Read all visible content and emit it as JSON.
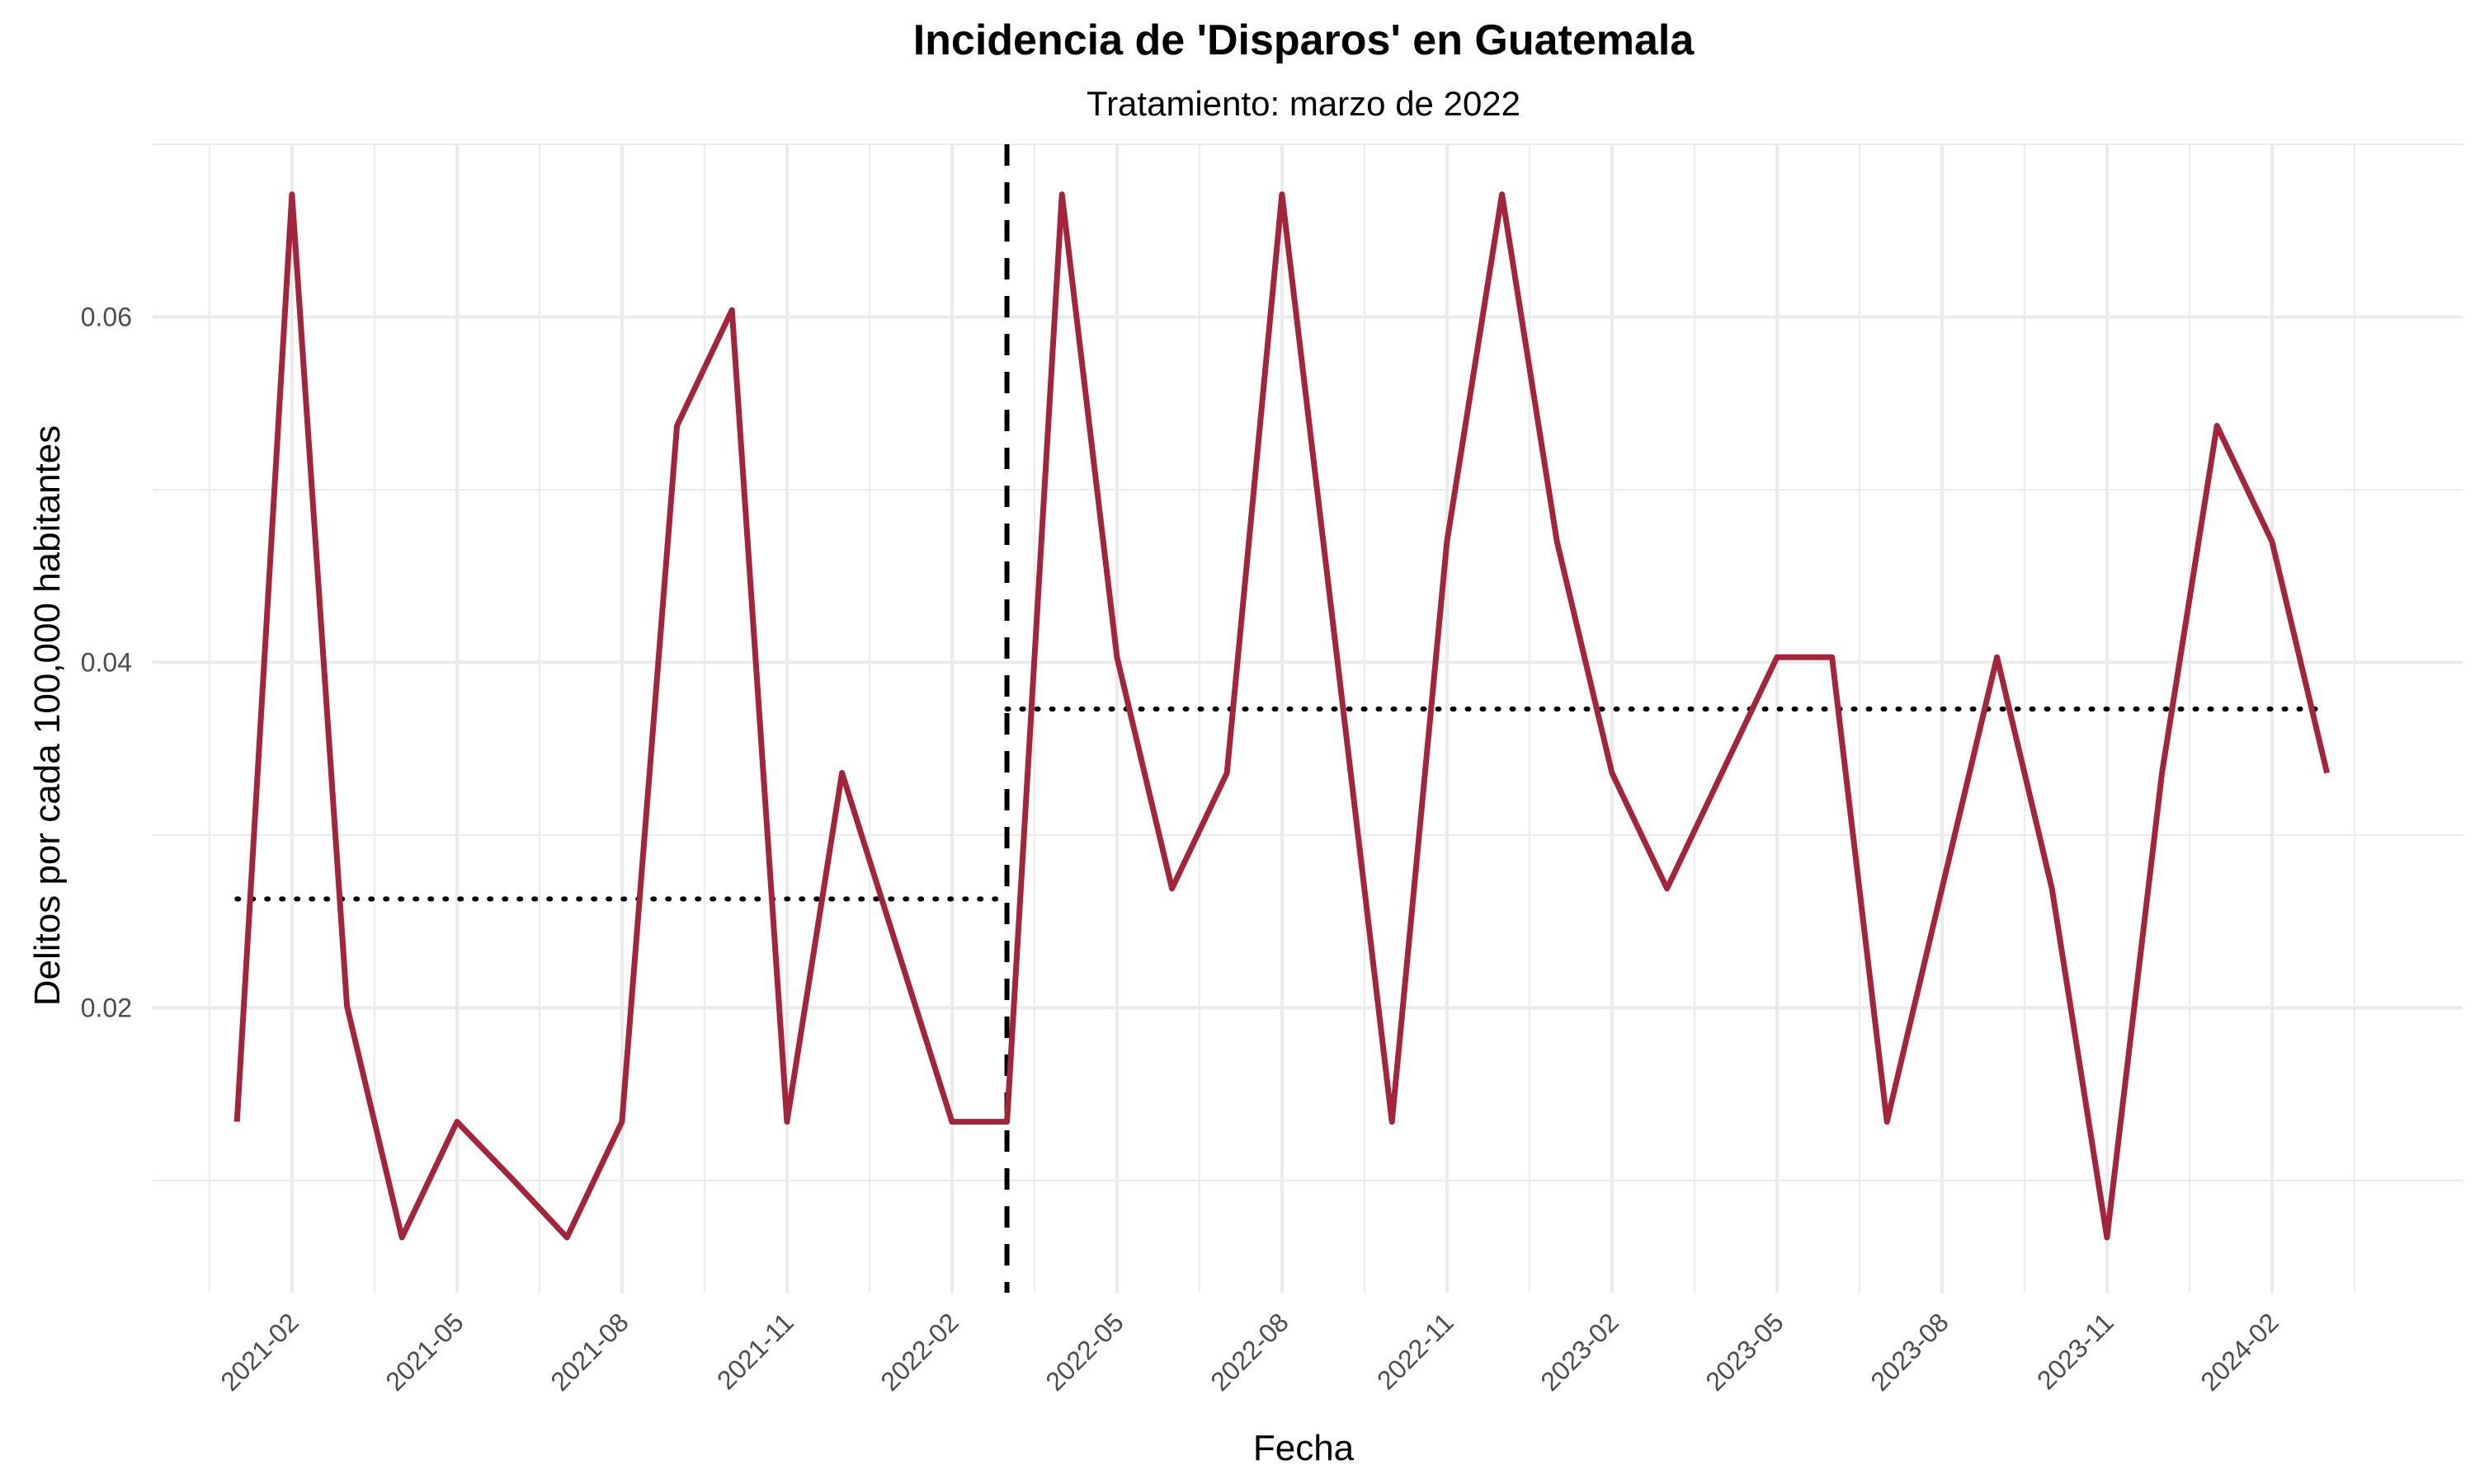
{
  "chart_data": {
    "type": "line",
    "title": "Incidencia de 'Disparos' en Guatemala",
    "subtitle": "Tratamiento: marzo de 2022",
    "xlabel": "Fecha",
    "ylabel": "Delitos por cada 100,000 habitantes",
    "x_ticks": [
      "2021-02",
      "2021-05",
      "2021-08",
      "2021-11",
      "2022-02",
      "2022-05",
      "2022-08",
      "2022-11",
      "2023-02",
      "2023-05",
      "2023-08",
      "2023-11",
      "2024-02"
    ],
    "y_ticks": [
      0.02,
      0.04,
      0.06
    ],
    "y_tick_labels": [
      "0.02",
      "0.04",
      "0.06"
    ],
    "ylim": [
      0.0035,
      0.07
    ],
    "xlim": [
      "2020-11-15",
      "2024-05-15"
    ],
    "grid": true,
    "colors": {
      "line": "#A4243B",
      "reference": "#000000",
      "grid": "#EBEBEB"
    },
    "series": [
      {
        "x": [
          "2021-01",
          "2021-02",
          "2021-03",
          "2021-04",
          "2021-05",
          "2021-06",
          "2021-07",
          "2021-08",
          "2021-09",
          "2021-10",
          "2021-11",
          "2021-12",
          "2022-01",
          "2022-02",
          "2022-03",
          "2022-04",
          "2022-05",
          "2022-06",
          "2022-07",
          "2022-08",
          "2022-09",
          "2022-10",
          "2022-11",
          "2022-12",
          "2023-01",
          "2023-02",
          "2023-03",
          "2023-04",
          "2023-05",
          "2023-06",
          "2023-07",
          "2023-08",
          "2023-09",
          "2023-10",
          "2023-11",
          "2023-12",
          "2024-01",
          "2024-02",
          "2024-03"
        ],
        "values": [
          0.0134,
          0.0671,
          0.0201,
          0.0067,
          0.0134,
          0.0101,
          0.0067,
          0.0134,
          0.0537,
          0.0604,
          0.0134,
          0.0336,
          0.0235,
          0.0134,
          0.0134,
          0.0671,
          0.0403,
          0.0269,
          0.0336,
          0.0671,
          0.0403,
          0.0134,
          0.047,
          0.0671,
          0.047,
          0.0336,
          0.0269,
          0.0336,
          0.0403,
          0.0403,
          0.0134,
          0.0269,
          0.0403,
          0.0269,
          0.0067,
          0.0336,
          0.0537,
          0.047,
          0.0336
        ]
      }
    ],
    "treatment_date": "2022-03",
    "mean_lines": [
      {
        "from": "2021-01",
        "to": "2022-03",
        "value": 0.0263
      },
      {
        "from": "2022-03",
        "to": "2024-03",
        "value": 0.0373
      }
    ]
  }
}
